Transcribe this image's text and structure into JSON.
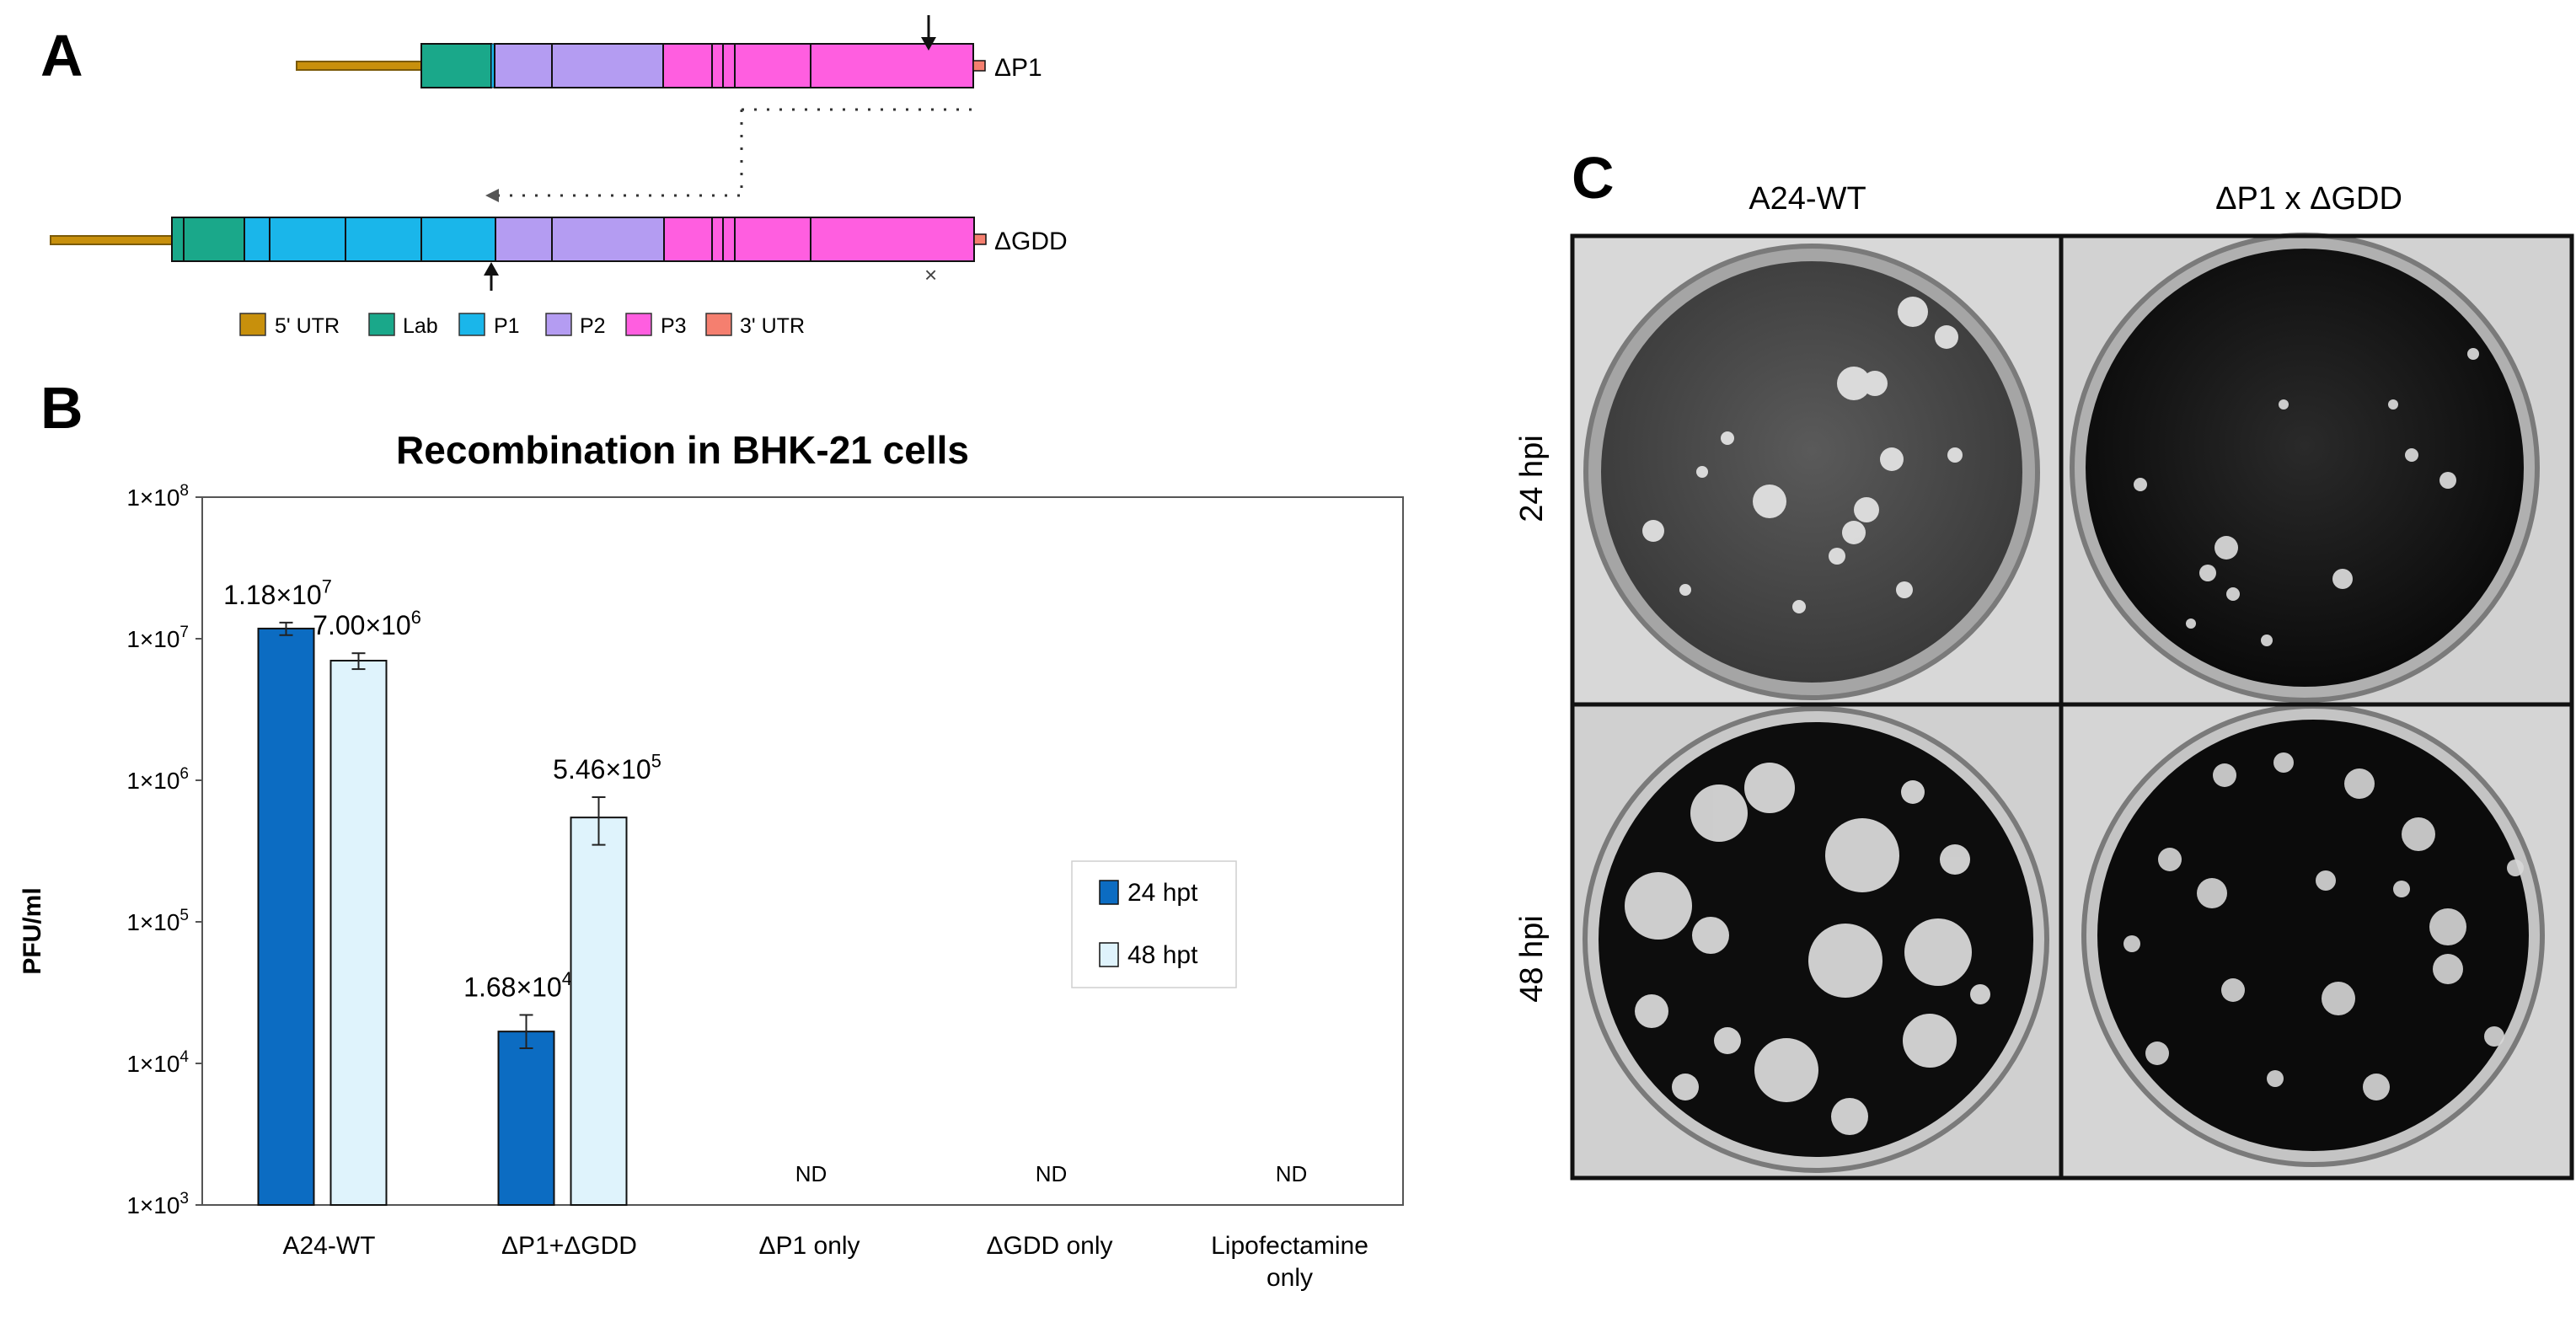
{
  "panels": {
    "a": "A",
    "b": "B",
    "c": "C"
  },
  "panel_a": {
    "construct_top_label": "ΔP1",
    "construct_bottom_label": "ΔGDD",
    "deletion_mark": "×",
    "legend": [
      {
        "label": "5' UTR",
        "color": "#c8900c"
      },
      {
        "label": "Lab",
        "color": "#1aa88a"
      },
      {
        "label": "P1",
        "color": "#1ab6ea"
      },
      {
        "label": "P2",
        "color": "#b49cf2"
      },
      {
        "label": "P3",
        "color": "#ff5ee0"
      },
      {
        "label": "3' UTR",
        "color": "#f57f6f"
      }
    ]
  },
  "chart_data": {
    "type": "bar",
    "title": "Recombination in BHK-21 cells",
    "xlabel": "",
    "ylabel": "PFU/ml",
    "yscale": "log",
    "ylim": [
      1000,
      100000000
    ],
    "yticks": [
      {
        "base": "1×10",
        "exp": "3",
        "value": 1000
      },
      {
        "base": "1×10",
        "exp": "4",
        "value": 10000
      },
      {
        "base": "1×10",
        "exp": "5",
        "value": 100000
      },
      {
        "base": "1×10",
        "exp": "6",
        "value": 1000000
      },
      {
        "base": "1×10",
        "exp": "7",
        "value": 10000000
      },
      {
        "base": "1×10",
        "exp": "8",
        "value": 100000000
      }
    ],
    "categories": [
      [
        "A24-WT"
      ],
      [
        "ΔP1+ΔGDD"
      ],
      [
        "ΔP1 only"
      ],
      [
        "ΔGDD only"
      ],
      [
        "Lipofectamine",
        "only"
      ]
    ],
    "series": [
      {
        "name": "24 hpt",
        "color": "#0c6cc2",
        "values": [
          11800000,
          16800,
          null,
          null,
          null
        ],
        "err_low": [
          10600000,
          12800,
          null,
          null,
          null
        ],
        "err_high": [
          13000000,
          22000,
          null,
          null,
          null
        ],
        "labels": [
          {
            "base": "1.18×10",
            "exp": "7"
          },
          {
            "base": "1.68×10",
            "exp": "4"
          },
          null,
          null,
          null
        ]
      },
      {
        "name": "48 hpt",
        "color": "#dff3fc",
        "values": [
          7000000,
          546000,
          null,
          null,
          null
        ],
        "err_low": [
          6100000,
          350000,
          null,
          null,
          null
        ],
        "err_high": [
          7900000,
          760000,
          null,
          null,
          null
        ],
        "labels": [
          {
            "base": "7.00×10",
            "exp": "6"
          },
          {
            "base": "5.46×10",
            "exp": "5"
          },
          null,
          null,
          null
        ]
      }
    ],
    "not_detected_label": "ND",
    "legend": [
      "24 hpt",
      "48 hpt"
    ]
  },
  "panel_c": {
    "columns": [
      "A24-WT",
      "ΔP1 x ΔGDD"
    ],
    "rows": [
      "24 hpi",
      "48 hpi"
    ]
  }
}
